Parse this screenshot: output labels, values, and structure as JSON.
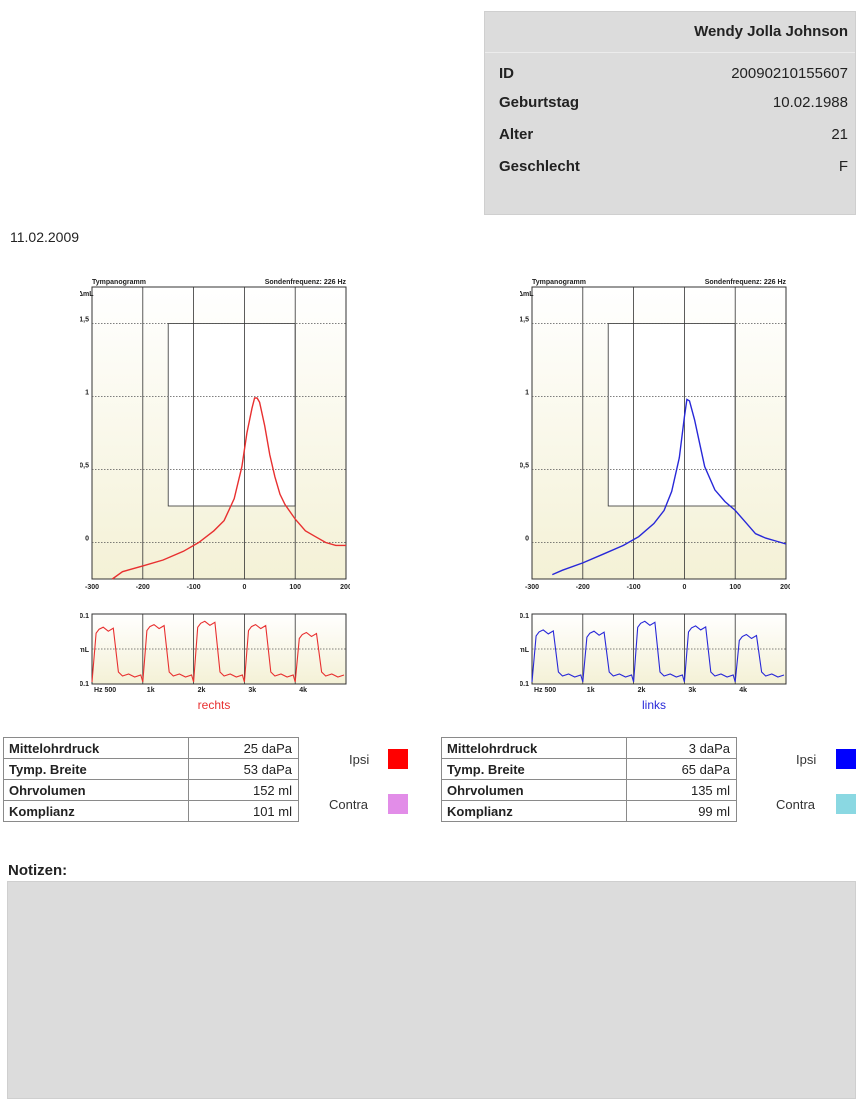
{
  "patient": {
    "name": "Wendy Jolla Johnson",
    "fields": [
      {
        "label": "ID",
        "value": "20090210155607"
      },
      {
        "label": "Geburtstag",
        "value": "10.02.1988"
      },
      {
        "label": "Alter",
        "value": "21"
      },
      {
        "label": "Geschlecht",
        "value": "F"
      }
    ]
  },
  "date": "11.02.2009",
  "chart_data": [
    {
      "type": "line",
      "title": "Tympanogramm",
      "subtitle": "Sondenfrequenz: 226 Hz",
      "ylabel": "ΔmL",
      "xlim": [
        -300,
        200
      ],
      "ylim": [
        -0.25,
        1.75
      ],
      "xticks": [
        "-300",
        "-200",
        "-100",
        "0",
        "100",
        "200"
      ],
      "yticks": [
        "1,5",
        "1",
        "0,5",
        "0"
      ],
      "color": "#e83030",
      "series": [
        {
          "name": "rechts",
          "x": [
            -260,
            -240,
            -200,
            -160,
            -120,
            -90,
            -60,
            -40,
            -20,
            -5,
            5,
            15,
            20,
            25,
            30,
            40,
            50,
            60,
            70,
            80,
            100,
            120,
            140,
            160,
            180,
            200
          ],
          "y": [
            -0.25,
            -0.2,
            -0.16,
            -0.12,
            -0.06,
            0.0,
            0.08,
            0.15,
            0.3,
            0.52,
            0.75,
            0.92,
            0.99,
            0.99,
            0.96,
            0.8,
            0.6,
            0.45,
            0.33,
            0.26,
            0.16,
            0.08,
            0.04,
            0.0,
            -0.02,
            -0.02
          ]
        }
      ],
      "footer_label": "rechts",
      "reflex": {
        "ylabel": "ΔmL",
        "ytop": "-0.1",
        "ybottom": "+0.1",
        "xlabels": [
          "Hz 500",
          "1k",
          "2k",
          "3k",
          "4k"
        ],
        "peaks": [
          0.86,
          0.9,
          0.95,
          0.9,
          0.78
        ]
      }
    },
    {
      "type": "line",
      "title": "Tympanogramm",
      "subtitle": "Sondenfrequenz: 226 Hz",
      "ylabel": "ΔmL",
      "xlim": [
        -300,
        200
      ],
      "ylim": [
        -0.25,
        1.75
      ],
      "xticks": [
        "-300",
        "-200",
        "-100",
        "0",
        "100",
        "200"
      ],
      "yticks": [
        "1,5",
        "1",
        "0,5",
        "0"
      ],
      "color": "#2828d8",
      "series": [
        {
          "name": "links",
          "x": [
            -260,
            -240,
            -200,
            -160,
            -120,
            -90,
            -60,
            -40,
            -25,
            -10,
            0,
            5,
            10,
            20,
            30,
            40,
            60,
            80,
            100,
            120,
            140,
            160,
            180,
            200
          ],
          "y": [
            -0.22,
            -0.19,
            -0.14,
            -0.08,
            -0.02,
            0.04,
            0.13,
            0.22,
            0.35,
            0.58,
            0.86,
            0.98,
            0.97,
            0.84,
            0.68,
            0.52,
            0.36,
            0.28,
            0.22,
            0.14,
            0.06,
            0.03,
            0.01,
            -0.01
          ]
        }
      ],
      "footer_label": "links",
      "reflex": {
        "ylabel": "ΔmL",
        "ytop": "-0.1",
        "ybottom": "+0.1",
        "xlabels": [
          "Hz 500",
          "1k",
          "2k",
          "3k",
          "4k"
        ],
        "peaks": [
          0.82,
          0.8,
          0.95,
          0.88,
          0.75
        ]
      }
    }
  ],
  "results": [
    {
      "rows": [
        {
          "label": "Mittelohrdruck",
          "value": "25 daPa"
        },
        {
          "label": "Tymp. Breite",
          "value": "53 daPa"
        },
        {
          "label": "Ohrvolumen",
          "value": "152 ml"
        },
        {
          "label": "Komplianz",
          "value": "101 ml"
        }
      ],
      "legend": [
        {
          "label": "Ipsi",
          "color": "#ff0000"
        },
        {
          "label": "Contra",
          "color": "#e28de8"
        }
      ]
    },
    {
      "rows": [
        {
          "label": "Mittelohrdruck",
          "value": "3 daPa"
        },
        {
          "label": "Tymp. Breite",
          "value": "65 daPa"
        },
        {
          "label": "Ohrvolumen",
          "value": "135 ml"
        },
        {
          "label": "Komplianz",
          "value": "99 ml"
        }
      ],
      "legend": [
        {
          "label": "Ipsi",
          "color": "#0000ff"
        },
        {
          "label": "Contra",
          "color": "#8ad8e2"
        }
      ]
    }
  ],
  "notes": {
    "title": "Notizen:",
    "text": ""
  }
}
